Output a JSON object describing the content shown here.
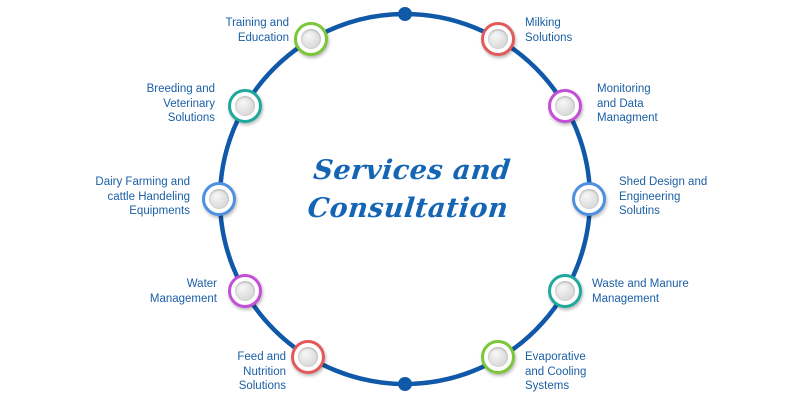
{
  "center_title": [
    "Services and",
    "Consultation"
  ],
  "ring_color": "#1058a8",
  "nodes": [
    {
      "id": "training-and-education",
      "lines": [
        "Training and",
        "Education"
      ],
      "border": "#7cc63a"
    },
    {
      "id": "milking-solutions",
      "lines": [
        "Milking",
        "Solutions"
      ],
      "border": "#e35a5a"
    },
    {
      "id": "breeding-and-veterinary-solutions",
      "lines": [
        "Breeding and",
        "Veterinary",
        "Solutions"
      ],
      "border": "#1fa89c"
    },
    {
      "id": "monitoring-and-data-managment",
      "lines": [
        "Monitoring",
        "and Data",
        "Managment"
      ],
      "border": "#c34fd6"
    },
    {
      "id": "dairy-farming-and-cattle-handeling-equipments",
      "lines": [
        "Dairy Farming and",
        "cattle Handeling",
        "Equipments"
      ],
      "border": "#4d8fe0"
    },
    {
      "id": "shed-design-and-engineering-solutins",
      "lines": [
        "Shed Design and",
        "Engineering",
        "Solutins"
      ],
      "border": "#4d8fe0"
    },
    {
      "id": "water-management",
      "lines": [
        "Water",
        "Management"
      ],
      "border": "#c34fd6"
    },
    {
      "id": "waste-and-manure-management",
      "lines": [
        "Waste and  Manure",
        "Management"
      ],
      "border": "#1fa89c"
    },
    {
      "id": "feed-and-nutrition-solutions",
      "lines": [
        "Feed and",
        "Nutrition",
        "Solutions"
      ],
      "border": "#e35a5a"
    },
    {
      "id": "evaporative-and-cooling-systems",
      "lines": [
        "Evaporative",
        "and Cooling",
        "Systems"
      ],
      "border": "#7cc63a"
    }
  ]
}
